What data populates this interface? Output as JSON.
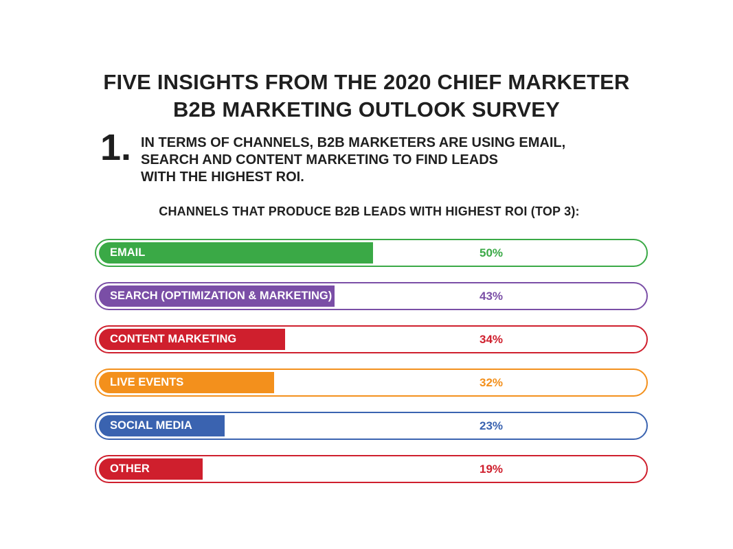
{
  "title": {
    "line1": "FIVE INSIGHTS FROM THE 2020 CHIEF MARKETER",
    "line2": "B2B MARKETING OUTLOOK SURVEY"
  },
  "insight": {
    "number": "1.",
    "line1": "IN TERMS OF CHANNELS, B2B MARKETERS ARE USING EMAIL,",
    "line2": "SEARCH AND CONTENT MARKETING TO FIND LEADS",
    "line3": "WITH THE HIGHEST ROI."
  },
  "chart_data": {
    "type": "bar",
    "orientation": "horizontal",
    "title": "CHANNELS THAT PRODUCE B2B LEADS WITH HIGHEST ROI (TOP 3):",
    "categories": [
      "EMAIL",
      "SEARCH (OPTIMIZATION & MARKETING)",
      "CONTENT MARKETING",
      "LIVE EVENTS",
      "SOCIAL MEDIA",
      "OTHER"
    ],
    "values": [
      50,
      43,
      34,
      32,
      23,
      19
    ],
    "value_labels": [
      "50%",
      "43%",
      "34%",
      "32%",
      "23%",
      "19%"
    ],
    "colors": [
      "#3aa946",
      "#7a4ea6",
      "#cf1f2d",
      "#f3901c",
      "#3a63b0",
      "#cf1f2d"
    ],
    "xlim": [
      0,
      100
    ],
    "grid": false,
    "legend": "none"
  }
}
